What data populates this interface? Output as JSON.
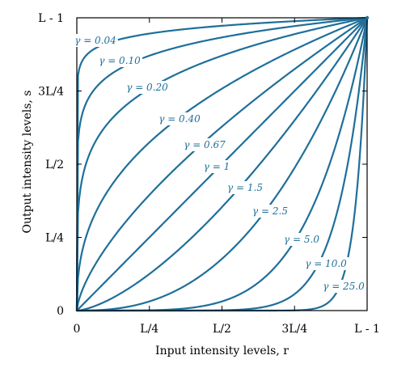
{
  "chart_data": {
    "type": "line",
    "title": "",
    "xlabel": "Input intensity levels, r",
    "ylabel": "Output intensity levels, s",
    "xlim": [
      0,
      1
    ],
    "ylim": [
      0,
      1
    ],
    "x_tick_labels": [
      "0",
      "L/4",
      "L/2",
      "3L/4",
      "L - 1"
    ],
    "y_tick_labels": [
      "0",
      "L/4",
      "L/2",
      "3L/4",
      "L - 1"
    ],
    "x_ticks": [
      0,
      0.25,
      0.5,
      0.75,
      1
    ],
    "y_ticks": [
      0,
      0.25,
      0.5,
      0.75,
      1
    ],
    "grid": false,
    "series": [
      {
        "name": "γ = 0.04",
        "gamma": 0.04
      },
      {
        "name": "γ = 0.10",
        "gamma": 0.1
      },
      {
        "name": "γ = 0.20",
        "gamma": 0.2
      },
      {
        "name": "γ = 0.40",
        "gamma": 0.4
      },
      {
        "name": "γ = 0.67",
        "gamma": 0.67
      },
      {
        "name": "γ = 1",
        "gamma": 1
      },
      {
        "name": "γ = 1.5",
        "gamma": 1.5
      },
      {
        "name": "γ = 2.5",
        "gamma": 2.5
      },
      {
        "name": "γ = 5.0",
        "gamma": 5.0
      },
      {
        "name": "γ = 10.0",
        "gamma": 10.0
      },
      {
        "name": "γ = 25.0",
        "gamma": 25.0
      }
    ]
  }
}
